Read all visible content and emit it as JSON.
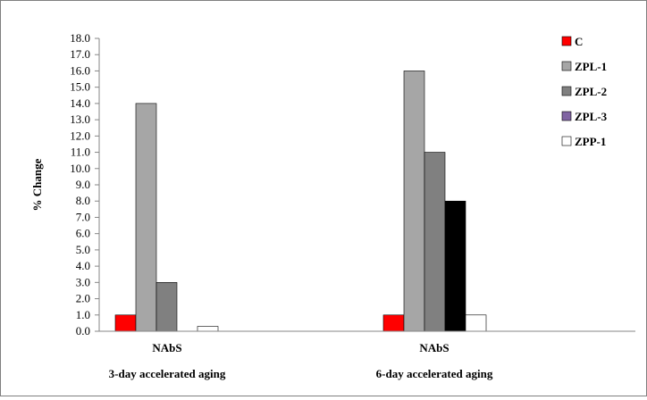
{
  "chart_data": {
    "type": "bar",
    "ylabel": "% Change",
    "ylim": [
      0,
      18
    ],
    "y_tick_step": 1,
    "y_tick_labels": [
      "0.0",
      "1.0",
      "2.0",
      "3.0",
      "4.0",
      "5.0",
      "6.0",
      "7.0",
      "8.0",
      "9.0",
      "10.0",
      "11.0",
      "12.0",
      "13.0",
      "14.0",
      "15.0",
      "16.0",
      "17.0",
      "18.0"
    ],
    "groups": [
      {
        "category": "NAbS",
        "sublabel": "3-day accelerated aging"
      },
      {
        "category": "NAbS",
        "sublabel": "6-day accelerated aging"
      }
    ],
    "series": [
      {
        "name": "C",
        "color": "#ff0000",
        "values": [
          1.0,
          1.0
        ]
      },
      {
        "name": "ZPL-1",
        "color": "#a6a6a6",
        "values": [
          14.0,
          16.0
        ]
      },
      {
        "name": "ZPL-2",
        "color": "#808080",
        "values": [
          3.0,
          11.0
        ]
      },
      {
        "name": "ZPL-3",
        "color": "#8064a2",
        "values": [
          0.0,
          0.0
        ]
      },
      {
        "name": "ZPP-1",
        "color": "#ffffff",
        "values": [
          0.3,
          1.0
        ]
      }
    ],
    "extra_bars": [
      {
        "group": 1,
        "color": "#000000",
        "value": 8.0
      }
    ],
    "legend_position": "top-right",
    "grid": false
  }
}
